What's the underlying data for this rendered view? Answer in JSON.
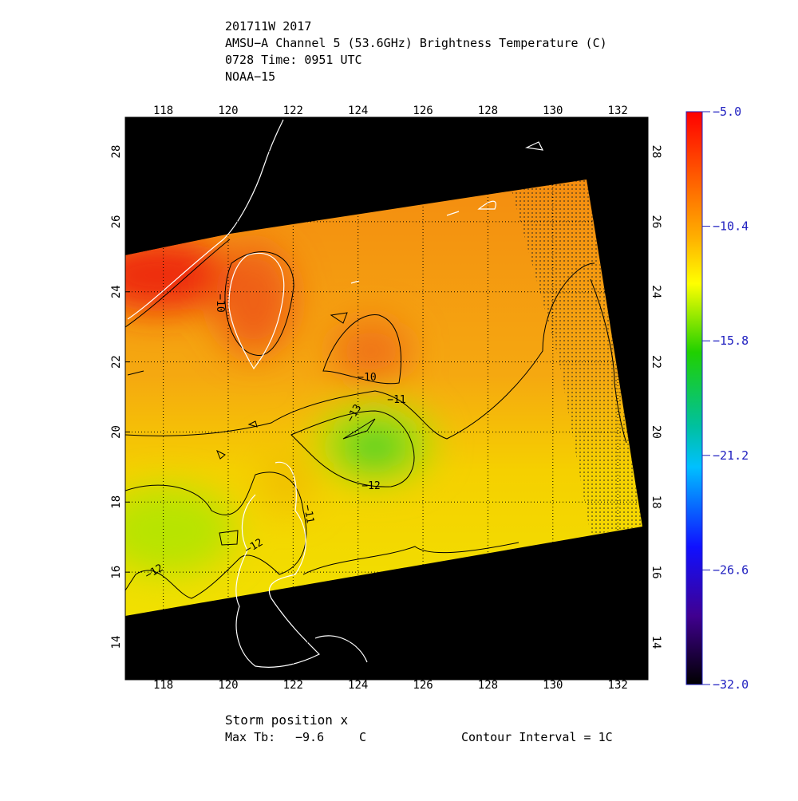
{
  "header": {
    "lines": [
      "201711W 2017",
      "AMSU−A Channel 5 (53.6GHz) Brightness Temperature (C)",
      "0728 Time: 0951 UTC",
      "NOAA−15"
    ]
  },
  "map": {
    "xlim": [
      116.83,
      132.93
    ],
    "ylim": [
      12.93,
      28.98
    ],
    "lon_ticks": [
      118,
      120,
      122,
      124,
      126,
      128,
      130,
      132
    ],
    "lat_ticks": [
      14,
      16,
      18,
      20,
      22,
      24,
      26,
      28
    ],
    "grid": true,
    "contour_labels": [
      "−10",
      "−10",
      "−11",
      "−13",
      "−12",
      "−11",
      "−12",
      "−12"
    ]
  },
  "colorbar": {
    "lim": [
      -32.0,
      -5.0
    ],
    "ticks": [
      {
        "value": -5.0,
        "label": "−5.0"
      },
      {
        "value": -10.4,
        "label": "−10.4"
      },
      {
        "value": -15.8,
        "label": "−15.8"
      },
      {
        "value": -21.2,
        "label": "−21.2"
      },
      {
        "value": -26.6,
        "label": "−26.6"
      },
      {
        "value": -32.0,
        "label": "−32.0"
      }
    ]
  },
  "footer": {
    "storm": "Storm position x",
    "max_tb_label": "Max Tb:",
    "max_tb": -9.6,
    "max_tb_unit": "C",
    "contour_interval": "Contour Interval = 1C"
  }
}
